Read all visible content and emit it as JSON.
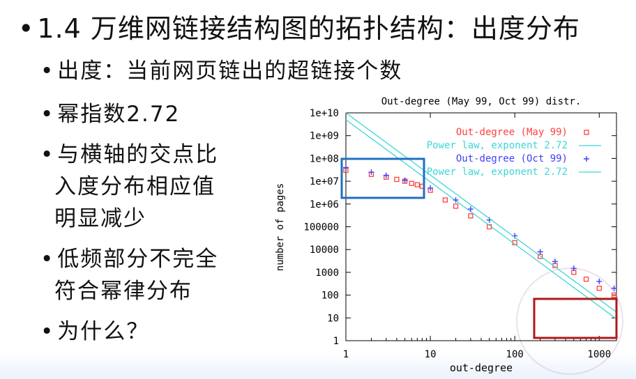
{
  "slide": {
    "title": "1.4 万维网链接结构图的拓扑结构：出度分布",
    "bullets": [
      "出度：当前网页链出的超链接个数",
      "幂指数2.72",
      "与横轴的交点比",
      "入度分布相应值",
      "明显减少",
      "低频部分不完全",
      "符合幂律分布",
      "为什么？"
    ]
  },
  "chart_data": {
    "type": "scatter",
    "title": "Out-degree (May 99, Oct 99) distr.",
    "xlabel": "out-degree",
    "ylabel": "number of pages",
    "xscale": "log",
    "yscale": "log",
    "xlim": [
      1,
      1600
    ],
    "ylim": [
      1,
      10000000000
    ],
    "x_ticks": [
      "1",
      "10",
      "100",
      "1000"
    ],
    "y_ticks": [
      "1",
      "10",
      "100",
      "1000",
      "10000",
      "100000",
      "1e+06",
      "1e+07",
      "1e+08",
      "1e+09",
      "1e+10"
    ],
    "legend_position": "top-right",
    "series": [
      {
        "name": "Out-degree (May 99)",
        "marker": "square",
        "color": "#ff4040",
        "x": [
          1,
          2,
          3,
          4,
          5,
          6,
          7,
          8,
          10,
          15,
          20,
          30,
          50,
          100,
          200,
          300,
          500,
          700,
          1000,
          1500
        ],
        "y": [
          30000000,
          20000000,
          15000000,
          12000000,
          10000000,
          8000000,
          7000000,
          6000000,
          4000000,
          1500000,
          800000,
          300000,
          100000,
          20000,
          5000,
          2000,
          1000,
          500,
          200,
          100
        ]
      },
      {
        "name": "Power law, exponent 2.72",
        "marker": "line",
        "color": "#3ed6d6",
        "x": [
          1,
          1600
        ],
        "y": [
          5000000000,
          9
        ]
      },
      {
        "name": "Out-degree (Oct 99)",
        "marker": "plus",
        "color": "#4040ff",
        "x": [
          1,
          2,
          3,
          5,
          10,
          20,
          30,
          50,
          100,
          200,
          300,
          500,
          1000,
          1500
        ],
        "y": [
          40000000,
          25000000,
          18000000,
          11000000,
          5000000,
          1500000,
          600000,
          200000,
          40000,
          8000,
          3000,
          1500,
          400,
          200
        ]
      },
      {
        "name": "Power law, exponent 2.72",
        "marker": "line",
        "color": "#3ed6d6",
        "x": [
          1,
          1600
        ],
        "y": [
          10000000000,
          18
        ]
      }
    ],
    "colors": {
      "highlight_blue": "#1f6fc0",
      "highlight_red": "#b01818"
    }
  }
}
